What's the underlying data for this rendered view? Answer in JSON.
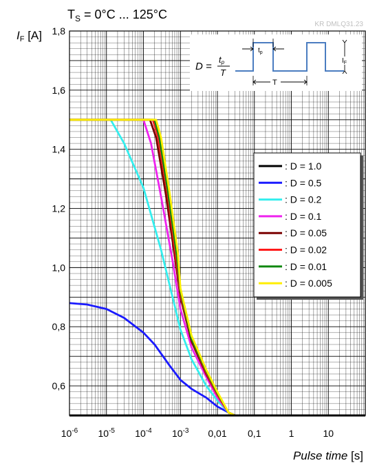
{
  "header": {
    "temp_prefix": "T",
    "temp_sub": "S",
    "temp_range": " = 0°C ... 125°C",
    "code": "KR DMLQ31.23"
  },
  "chart_data": {
    "type": "line",
    "ylabel_main": "I",
    "ylabel_sub": "F",
    "ylabel_unit": " [A]",
    "xlabel_main": "Pulse time",
    "xlabel_unit": " [s]",
    "x_scale": "log",
    "xlim": [
      1e-06,
      100
    ],
    "ylim": [
      0.5,
      1.8
    ],
    "grid": true,
    "legend_position": "right",
    "x_ticks": [
      {
        "value": 1e-06,
        "base": "10",
        "exp": "-6"
      },
      {
        "value": 1e-05,
        "base": "10",
        "exp": "-5"
      },
      {
        "value": 0.0001,
        "base": "10",
        "exp": "-4"
      },
      {
        "value": 0.001,
        "base": "10",
        "exp": "-3"
      },
      {
        "value": 0.01,
        "base": "0,01",
        "exp": ""
      },
      {
        "value": 0.1,
        "base": "0,1",
        "exp": ""
      },
      {
        "value": 1,
        "base": "1",
        "exp": ""
      },
      {
        "value": 10,
        "base": "10",
        "exp": ""
      }
    ],
    "y_ticks": [
      {
        "value": 0.6,
        "label": "0,6"
      },
      {
        "value": 0.8,
        "label": "0,8"
      },
      {
        "value": 1.0,
        "label": "1,0"
      },
      {
        "value": 1.2,
        "label": "1,2"
      },
      {
        "value": 1.4,
        "label": "1,4"
      },
      {
        "value": 1.6,
        "label": "1,6"
      },
      {
        "value": 1.8,
        "label": "1,8"
      }
    ],
    "series": [
      {
        "name": ": D = 1.0",
        "color": "#000000",
        "x": [
          1e-06,
          100
        ],
        "y": [
          0.5,
          0.5
        ]
      },
      {
        "name": ": D = 0.5",
        "color": "#1a1aff",
        "x": [
          1e-06,
          3e-06,
          1e-05,
          3e-05,
          0.0001,
          0.0002,
          0.0005,
          0.001,
          0.002,
          0.005,
          0.01,
          0.02,
          0.03,
          100
        ],
        "y": [
          0.88,
          0.875,
          0.86,
          0.83,
          0.78,
          0.74,
          0.67,
          0.62,
          0.59,
          0.56,
          0.53,
          0.51,
          0.5,
          0.5
        ]
      },
      {
        "name": ": D = 0.2",
        "color": "#33eeee",
        "x": [
          1e-06,
          1.3e-05,
          3e-05,
          0.0001,
          0.0003,
          0.001,
          0.002,
          0.005,
          0.01,
          0.02,
          0.03,
          100
        ],
        "y": [
          1.5,
          1.5,
          1.42,
          1.27,
          1.06,
          0.79,
          0.69,
          0.6,
          0.55,
          0.51,
          0.5,
          0.5
        ]
      },
      {
        "name": ": D = 0.1",
        "color": "#ee22ee",
        "x": [
          1e-06,
          0.0001,
          0.00016,
          0.0003,
          0.0006,
          0.001,
          0.002,
          0.005,
          0.01,
          0.02,
          0.03,
          100
        ],
        "y": [
          1.5,
          1.5,
          1.42,
          1.24,
          1.03,
          0.86,
          0.73,
          0.63,
          0.56,
          0.51,
          0.5,
          0.5
        ]
      },
      {
        "name": ": D = 0.05",
        "color": "#7a0000",
        "x": [
          1e-06,
          0.00015,
          0.00022,
          0.0004,
          0.0007,
          0.001,
          0.002,
          0.005,
          0.01,
          0.02,
          0.03,
          100
        ],
        "y": [
          1.5,
          1.5,
          1.44,
          1.25,
          1.04,
          0.9,
          0.75,
          0.64,
          0.57,
          0.51,
          0.5,
          0.5
        ]
      },
      {
        "name": ": D = 0.02",
        "color": "#ff1a1a",
        "x": [
          1e-06,
          0.00018,
          0.00025,
          0.00045,
          0.00075,
          0.001,
          0.002,
          0.005,
          0.01,
          0.02,
          0.03,
          100
        ],
        "y": [
          1.5,
          1.5,
          1.44,
          1.25,
          1.04,
          0.91,
          0.76,
          0.645,
          0.57,
          0.51,
          0.5,
          0.5
        ]
      },
      {
        "name": ": D = 0.01",
        "color": "#118811",
        "x": [
          1e-06,
          0.0002,
          0.00027,
          0.00047,
          0.0008,
          0.001,
          0.002,
          0.005,
          0.01,
          0.02,
          0.03,
          100
        ],
        "y": [
          1.5,
          1.5,
          1.44,
          1.25,
          1.04,
          0.92,
          0.76,
          0.65,
          0.575,
          0.51,
          0.5,
          0.5
        ]
      },
      {
        "name": ": D = 0.005",
        "color": "#ffee00",
        "x": [
          1e-06,
          0.00022,
          0.0003,
          0.0005,
          0.00085,
          0.001,
          0.002,
          0.005,
          0.01,
          0.02,
          0.03,
          100
        ],
        "y": [
          1.5,
          1.5,
          1.44,
          1.26,
          1.05,
          0.93,
          0.77,
          0.655,
          0.58,
          0.51,
          0.5,
          0.5
        ]
      }
    ]
  },
  "inset": {
    "eq_lhs": "D =",
    "eq_num": "t",
    "eq_num_sub": "p",
    "eq_den": "T",
    "tp_label": "t",
    "tp_sub": "p",
    "T_label": "T",
    "IF_label": "I",
    "IF_sub": "F"
  }
}
